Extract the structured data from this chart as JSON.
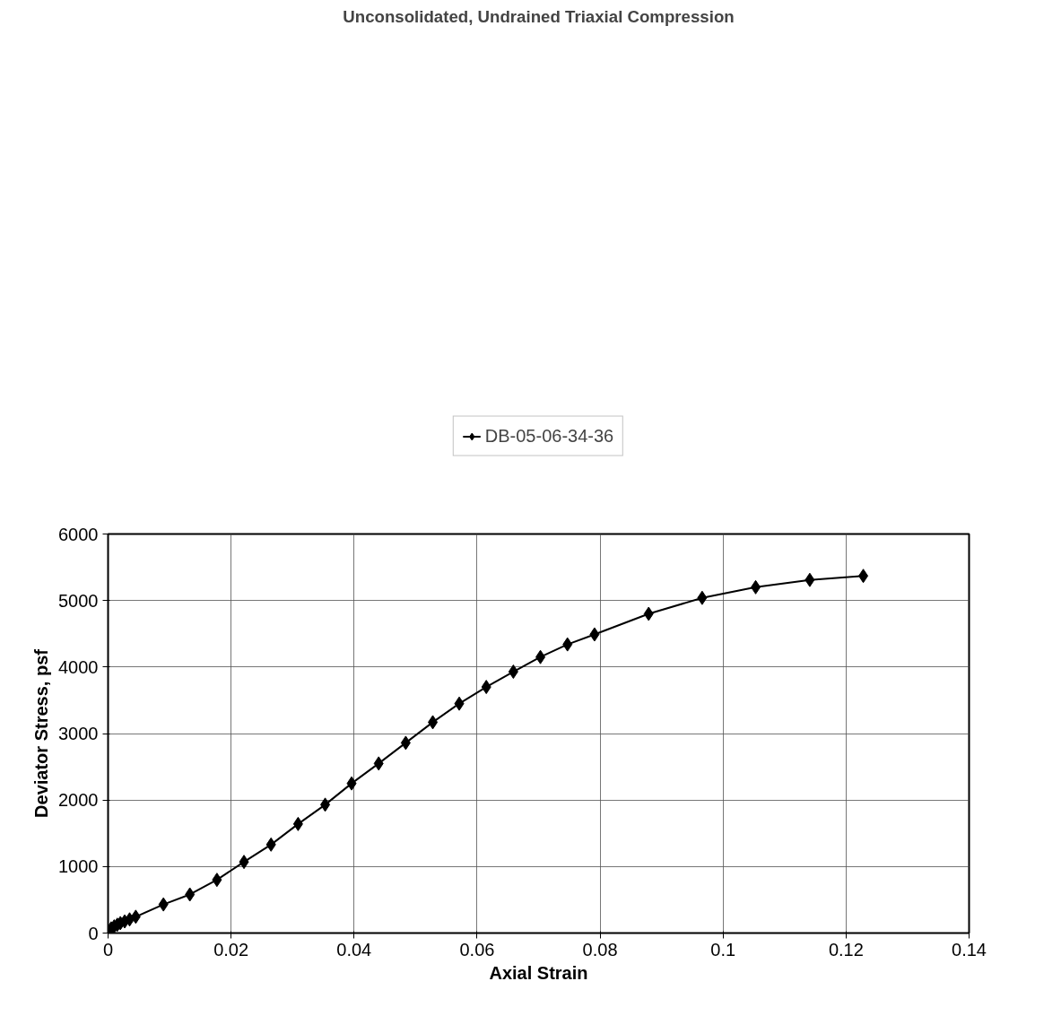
{
  "chart_data": {
    "type": "line",
    "title": "Unconsolidated, Undrained Triaxial Compression",
    "xlabel": "Axial Strain",
    "ylabel": "Deviator Stress, psf",
    "series": [
      {
        "name": "DB-05-06-34-36",
        "color": "#000000",
        "x": [
          0,
          0.0005,
          0.001,
          0.0015,
          0.002,
          0.0027,
          0.0035,
          0.0045,
          0.009,
          0.0133,
          0.0177,
          0.0221,
          0.0265,
          0.0309,
          0.0353,
          0.0396,
          0.044,
          0.0484,
          0.0528,
          0.0571,
          0.0615,
          0.0659,
          0.0703,
          0.0747,
          0.0791,
          0.0879,
          0.0966,
          0.1053,
          0.1141,
          0.1228
        ],
        "values": [
          0,
          70,
          100,
          125,
          150,
          175,
          205,
          245,
          430,
          580,
          800,
          1070,
          1330,
          1640,
          1930,
          2250,
          2550,
          2860,
          3170,
          3450,
          3700,
          3930,
          4150,
          4340,
          4490,
          4800,
          5040,
          5200,
          5310,
          5370
        ]
      }
    ],
    "xlim": [
      0,
      0.14
    ],
    "xticks": [
      0,
      0.02,
      0.04,
      0.06,
      0.08,
      {
        "value": 0.1,
        "label": "0.1"
      },
      0.12,
      0.14
    ],
    "ylim": [
      0,
      6000
    ],
    "yticks": [
      0,
      1000,
      2000,
      3000,
      4000,
      5000,
      6000
    ],
    "grid": true,
    "legend": "top",
    "marker": "diamond",
    "line_style": "solid"
  }
}
